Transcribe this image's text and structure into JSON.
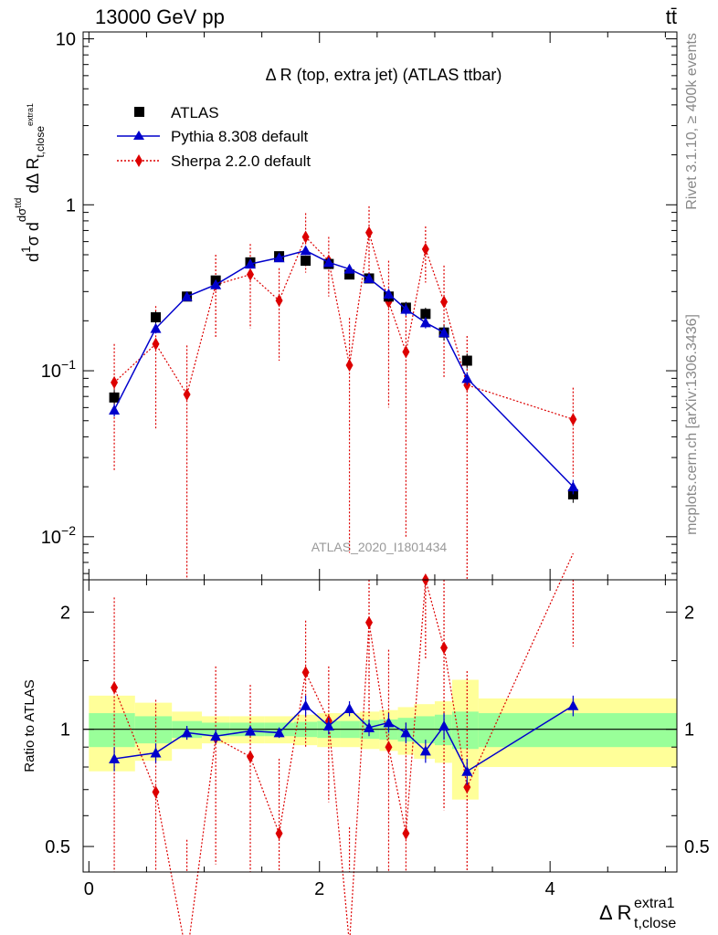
{
  "header": {
    "left": "13000 GeV pp",
    "right": "tt̄",
    "side_top": "Rivet 3.1.10, ≥ 400k events",
    "side_bottom": "mcplots.cern.ch [arXiv:1306.3436]"
  },
  "chart_data": {
    "type": "line",
    "title": "Δ R (top, extra jet) (ATLAS ttbar)",
    "watermark": "ATLAS_2020_I1801434",
    "ylabel_main": "d1/σ dσ^ttd / dΔ R t,close^extra1",
    "ylabel_ratio": "Ratio to ATLAS",
    "xlabel": "Δ R t,close^extra1",
    "main_y_scale": "log",
    "main_ylim": [
      0.0055,
      11
    ],
    "ratio_ylim": [
      0.43,
      2.42
    ],
    "xlim": [
      -0.05,
      5.1
    ],
    "x_ticks": [
      "0",
      "2",
      "4"
    ],
    "main_y_ticks": [
      "10",
      "1",
      "10−1",
      "10−2"
    ],
    "ratio_y_ticks": [
      "2",
      "1",
      "0.5"
    ],
    "legend": {
      "position": "top-left",
      "entries": [
        "ATLAS",
        "Pythia 8.308 default",
        "Sherpa 2.2.0 default"
      ]
    },
    "colors": {
      "atlas": "#000000",
      "pythia": "#0000cc",
      "sherpa": "#dd0000",
      "band_inner": "#99ff99",
      "band_outer": "#ffff99"
    },
    "x": [
      0.22,
      0.58,
      0.85,
      1.1,
      1.4,
      1.65,
      1.88,
      2.08,
      2.26,
      2.43,
      2.6,
      2.75,
      2.92,
      3.08,
      3.28,
      4.2
    ],
    "atlas": {
      "values": [
        0.069,
        0.21,
        0.28,
        0.35,
        0.45,
        0.49,
        0.46,
        0.44,
        0.38,
        0.36,
        0.28,
        0.24,
        0.22,
        0.17,
        0.115,
        0.018
      ],
      "errors": [
        0.008,
        0.018,
        0.015,
        0.015,
        0.02,
        0.02,
        0.02,
        0.02,
        0.02,
        0.02,
        0.02,
        0.02,
        0.02,
        0.018,
        0.012,
        0.002
      ]
    },
    "series": [
      {
        "name": "Pythia 8.308 default",
        "values": [
          0.058,
          0.18,
          0.28,
          0.33,
          0.44,
          0.48,
          0.53,
          0.45,
          0.41,
          0.36,
          0.29,
          0.235,
          0.195,
          0.17,
          0.09,
          0.02
        ],
        "errors": [
          0.005,
          0.012,
          0.012,
          0.012,
          0.015,
          0.015,
          0.03,
          0.02,
          0.02,
          0.02,
          0.02,
          0.02,
          0.015,
          0.012,
          0.008,
          0.002
        ]
      },
      {
        "name": "Sherpa 2.2.0 default",
        "values": [
          0.085,
          0.145,
          0.072,
          0.33,
          0.38,
          0.265,
          0.64,
          0.46,
          0.108,
          0.68,
          0.26,
          0.13,
          0.54,
          0.26,
          0.082,
          0.051
        ],
        "errors": [
          0.06,
          0.1,
          0.07,
          0.17,
          0.2,
          0.15,
          0.25,
          0.18,
          0.1,
          0.3,
          0.2,
          0.12,
          0.2,
          0.17,
          0.08,
          0.028
        ]
      }
    ],
    "ratio": {
      "band_edges": [
        0.0,
        0.4,
        0.72,
        0.98,
        1.22,
        1.52,
        1.78,
        1.98,
        2.18,
        2.35,
        2.52,
        2.68,
        2.82,
        3.0,
        3.15,
        3.38,
        5.1
      ],
      "band_inner": [
        0.1,
        0.08,
        0.05,
        0.04,
        0.04,
        0.04,
        0.045,
        0.05,
        0.05,
        0.055,
        0.06,
        0.07,
        0.08,
        0.09,
        0.11,
        0.1
      ],
      "band_outer": [
        0.22,
        0.17,
        0.11,
        0.08,
        0.08,
        0.08,
        0.09,
        0.1,
        0.1,
        0.11,
        0.12,
        0.14,
        0.16,
        0.18,
        0.34,
        0.2
      ],
      "pythia": [
        0.84,
        0.87,
        0.98,
        0.96,
        0.99,
        0.98,
        1.15,
        1.02,
        1.13,
        1.01,
        1.04,
        0.98,
        0.88,
        1.02,
        0.78,
        1.15
      ],
      "pythia_err": [
        0.06,
        0.05,
        0.04,
        0.04,
        0.03,
        0.03,
        0.07,
        0.05,
        0.05,
        0.05,
        0.06,
        0.06,
        0.06,
        0.08,
        0.06,
        0.07
      ],
      "sherpa": [
        1.28,
        0.69,
        0.26,
        0.95,
        0.85,
        0.54,
        1.4,
        1.05,
        0.28,
        1.88,
        0.9,
        0.54,
        2.42,
        1.62,
        0.71,
        2.83
      ],
      "sherpa_err": [
        0.9,
        0.5,
        0.26,
        0.5,
        0.45,
        0.3,
        0.5,
        0.4,
        0.28,
        0.8,
        0.7,
        0.5,
        0.9,
        1.0,
        0.7,
        1.2
      ]
    }
  }
}
